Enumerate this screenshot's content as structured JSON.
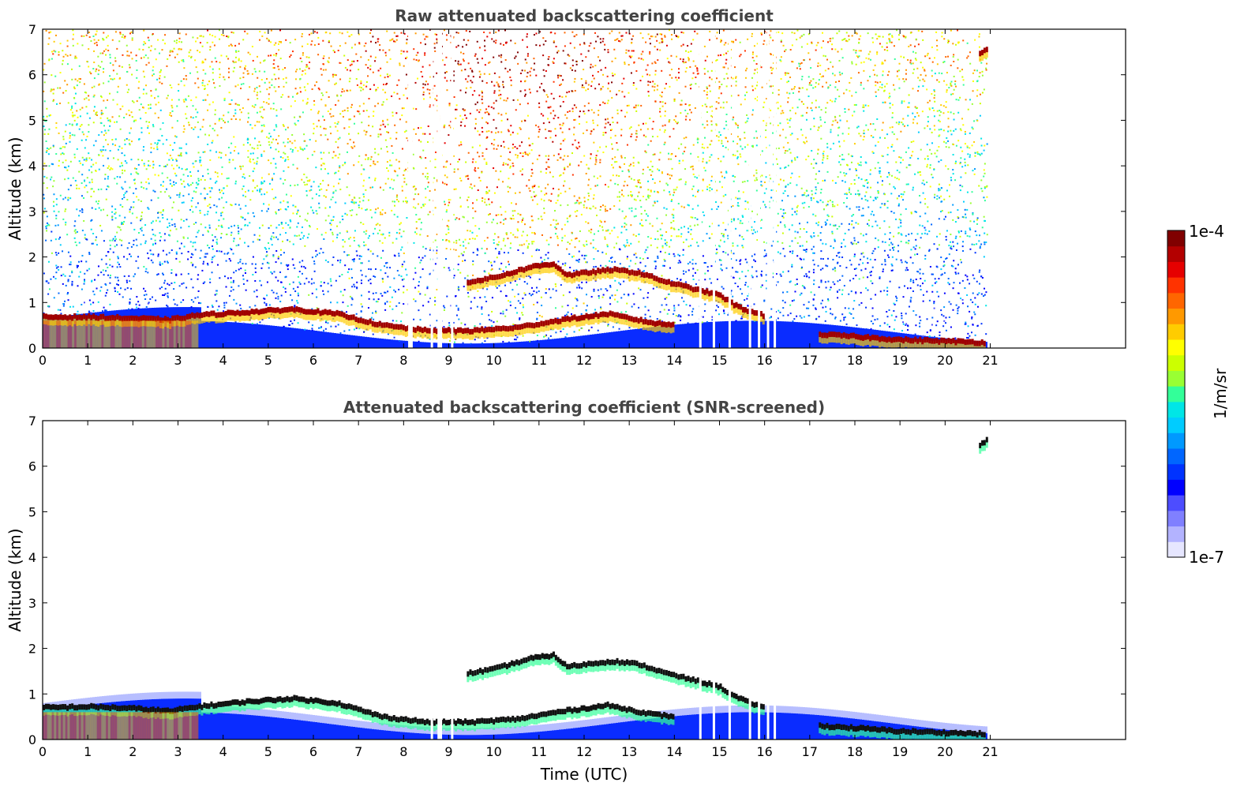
{
  "chart_data": [
    {
      "type": "heatmap",
      "title": "Raw attenuated backscattering coefficient",
      "xlabel": "",
      "ylabel": "Altitude (km)",
      "xlim": [
        0,
        24
      ],
      "ylim": [
        0,
        7
      ],
      "x_ticks": [
        0,
        1,
        2,
        3,
        4,
        5,
        6,
        7,
        8,
        9,
        10,
        11,
        12,
        13,
        14,
        15,
        16,
        17,
        18,
        19,
        20,
        21
      ],
      "y_ticks": [
        0,
        1,
        2,
        3,
        4,
        5,
        6,
        7
      ],
      "data_end_time": 20.95,
      "noise": "high",
      "gaps": [
        8.1,
        8.15,
        8.6,
        8.75,
        8.8,
        9.05,
        14.55,
        14.85,
        15.2,
        15.65,
        15.85,
        16.05,
        16.2
      ],
      "layers": [
        {
          "name": "boundary layer top",
          "points": [
            [
              0,
              0.68
            ],
            [
              1,
              0.68
            ],
            [
              2,
              0.65
            ],
            [
              2.8,
              0.62
            ],
            [
              3.4,
              0.72
            ],
            [
              4.4,
              0.78
            ],
            [
              5.5,
              0.85
            ],
            [
              6.5,
              0.75
            ],
            [
              7.5,
              0.5
            ],
            [
              8.5,
              0.38
            ],
            [
              9.5,
              0.38
            ],
            [
              10.5,
              0.45
            ],
            [
              11.5,
              0.62
            ],
            [
              12.5,
              0.75
            ],
            [
              13.5,
              0.55
            ],
            [
              14,
              0.5
            ]
          ]
        },
        {
          "name": "elevated layer",
          "points": [
            [
              9.4,
              1.45
            ],
            [
              10,
              1.55
            ],
            [
              10.8,
              1.78
            ],
            [
              11.3,
              1.85
            ],
            [
              11.6,
              1.6
            ],
            [
              12.6,
              1.72
            ],
            [
              13.2,
              1.65
            ],
            [
              13.8,
              1.45
            ],
            [
              14.5,
              1.28
            ],
            [
              15,
              1.15
            ],
            [
              15.3,
              0.95
            ],
            [
              15.6,
              0.82
            ],
            [
              16,
              0.7
            ]
          ]
        },
        {
          "name": "late low layer",
          "points": [
            [
              17.2,
              0.3
            ],
            [
              18,
              0.25
            ],
            [
              19,
              0.18
            ],
            [
              20,
              0.15
            ],
            [
              20.9,
              0.12
            ]
          ]
        },
        {
          "name": "high cloud",
          "points": [
            [
              20.75,
              6.45
            ],
            [
              20.95,
              6.6
            ]
          ]
        }
      ]
    },
    {
      "type": "heatmap",
      "title": "Attenuated backscattering coefficient (SNR-screened)",
      "xlabel": "Time (UTC)",
      "ylabel": "Altitude (km)",
      "xlim": [
        0,
        24
      ],
      "ylim": [
        0,
        7
      ],
      "x_ticks": [
        0,
        1,
        2,
        3,
        4,
        5,
        6,
        7,
        8,
        9,
        10,
        11,
        12,
        13,
        14,
        15,
        16,
        17,
        18,
        19,
        20,
        21
      ],
      "y_ticks": [
        0,
        1,
        2,
        3,
        4,
        5,
        6,
        7
      ],
      "data_end_time": 20.95,
      "noise": "screened",
      "gaps": [
        8.6,
        8.75,
        8.8,
        9.05,
        14.55,
        14.85,
        15.2,
        15.65,
        15.85,
        16.05,
        16.2
      ],
      "layers": [
        {
          "name": "boundary layer top",
          "points": [
            [
              0,
              0.7
            ],
            [
              1,
              0.72
            ],
            [
              2,
              0.68
            ],
            [
              2.8,
              0.62
            ],
            [
              3.4,
              0.72
            ],
            [
              4.4,
              0.82
            ],
            [
              5.5,
              0.9
            ],
            [
              6.5,
              0.8
            ],
            [
              7.5,
              0.5
            ],
            [
              8.5,
              0.38
            ],
            [
              9.5,
              0.38
            ],
            [
              10.5,
              0.45
            ],
            [
              11.5,
              0.62
            ],
            [
              12.5,
              0.75
            ],
            [
              13.5,
              0.55
            ],
            [
              14,
              0.5
            ]
          ]
        },
        {
          "name": "elevated layer",
          "points": [
            [
              9.4,
              1.45
            ],
            [
              10,
              1.55
            ],
            [
              10.8,
              1.78
            ],
            [
              11.3,
              1.85
            ],
            [
              11.6,
              1.6
            ],
            [
              12.6,
              1.72
            ],
            [
              13.2,
              1.65
            ],
            [
              13.8,
              1.45
            ],
            [
              14.5,
              1.28
            ],
            [
              15,
              1.15
            ],
            [
              15.3,
              0.95
            ],
            [
              15.6,
              0.82
            ],
            [
              16,
              0.7
            ]
          ]
        },
        {
          "name": "late low layer",
          "points": [
            [
              17.2,
              0.3
            ],
            [
              18,
              0.25
            ],
            [
              19,
              0.18
            ],
            [
              20,
              0.15
            ],
            [
              20.9,
              0.12
            ]
          ]
        },
        {
          "name": "high cloud",
          "points": [
            [
              20.75,
              6.45
            ],
            [
              20.95,
              6.6
            ]
          ]
        }
      ]
    }
  ],
  "colorbar": {
    "label": "1/m/sr",
    "max_label": "1e-4",
    "min_label": "1e-7",
    "colors": [
      "#e6e6ff",
      "#b3b3ff",
      "#8080ff",
      "#4d4dff",
      "#0000ff",
      "#0033ff",
      "#0066ff",
      "#0099ff",
      "#00ccff",
      "#00e6e6",
      "#33ff99",
      "#99ff33",
      "#ccff00",
      "#ffff00",
      "#ffcc00",
      "#ff9900",
      "#ff6600",
      "#ff3300",
      "#e60000",
      "#b30000",
      "#800000"
    ]
  }
}
